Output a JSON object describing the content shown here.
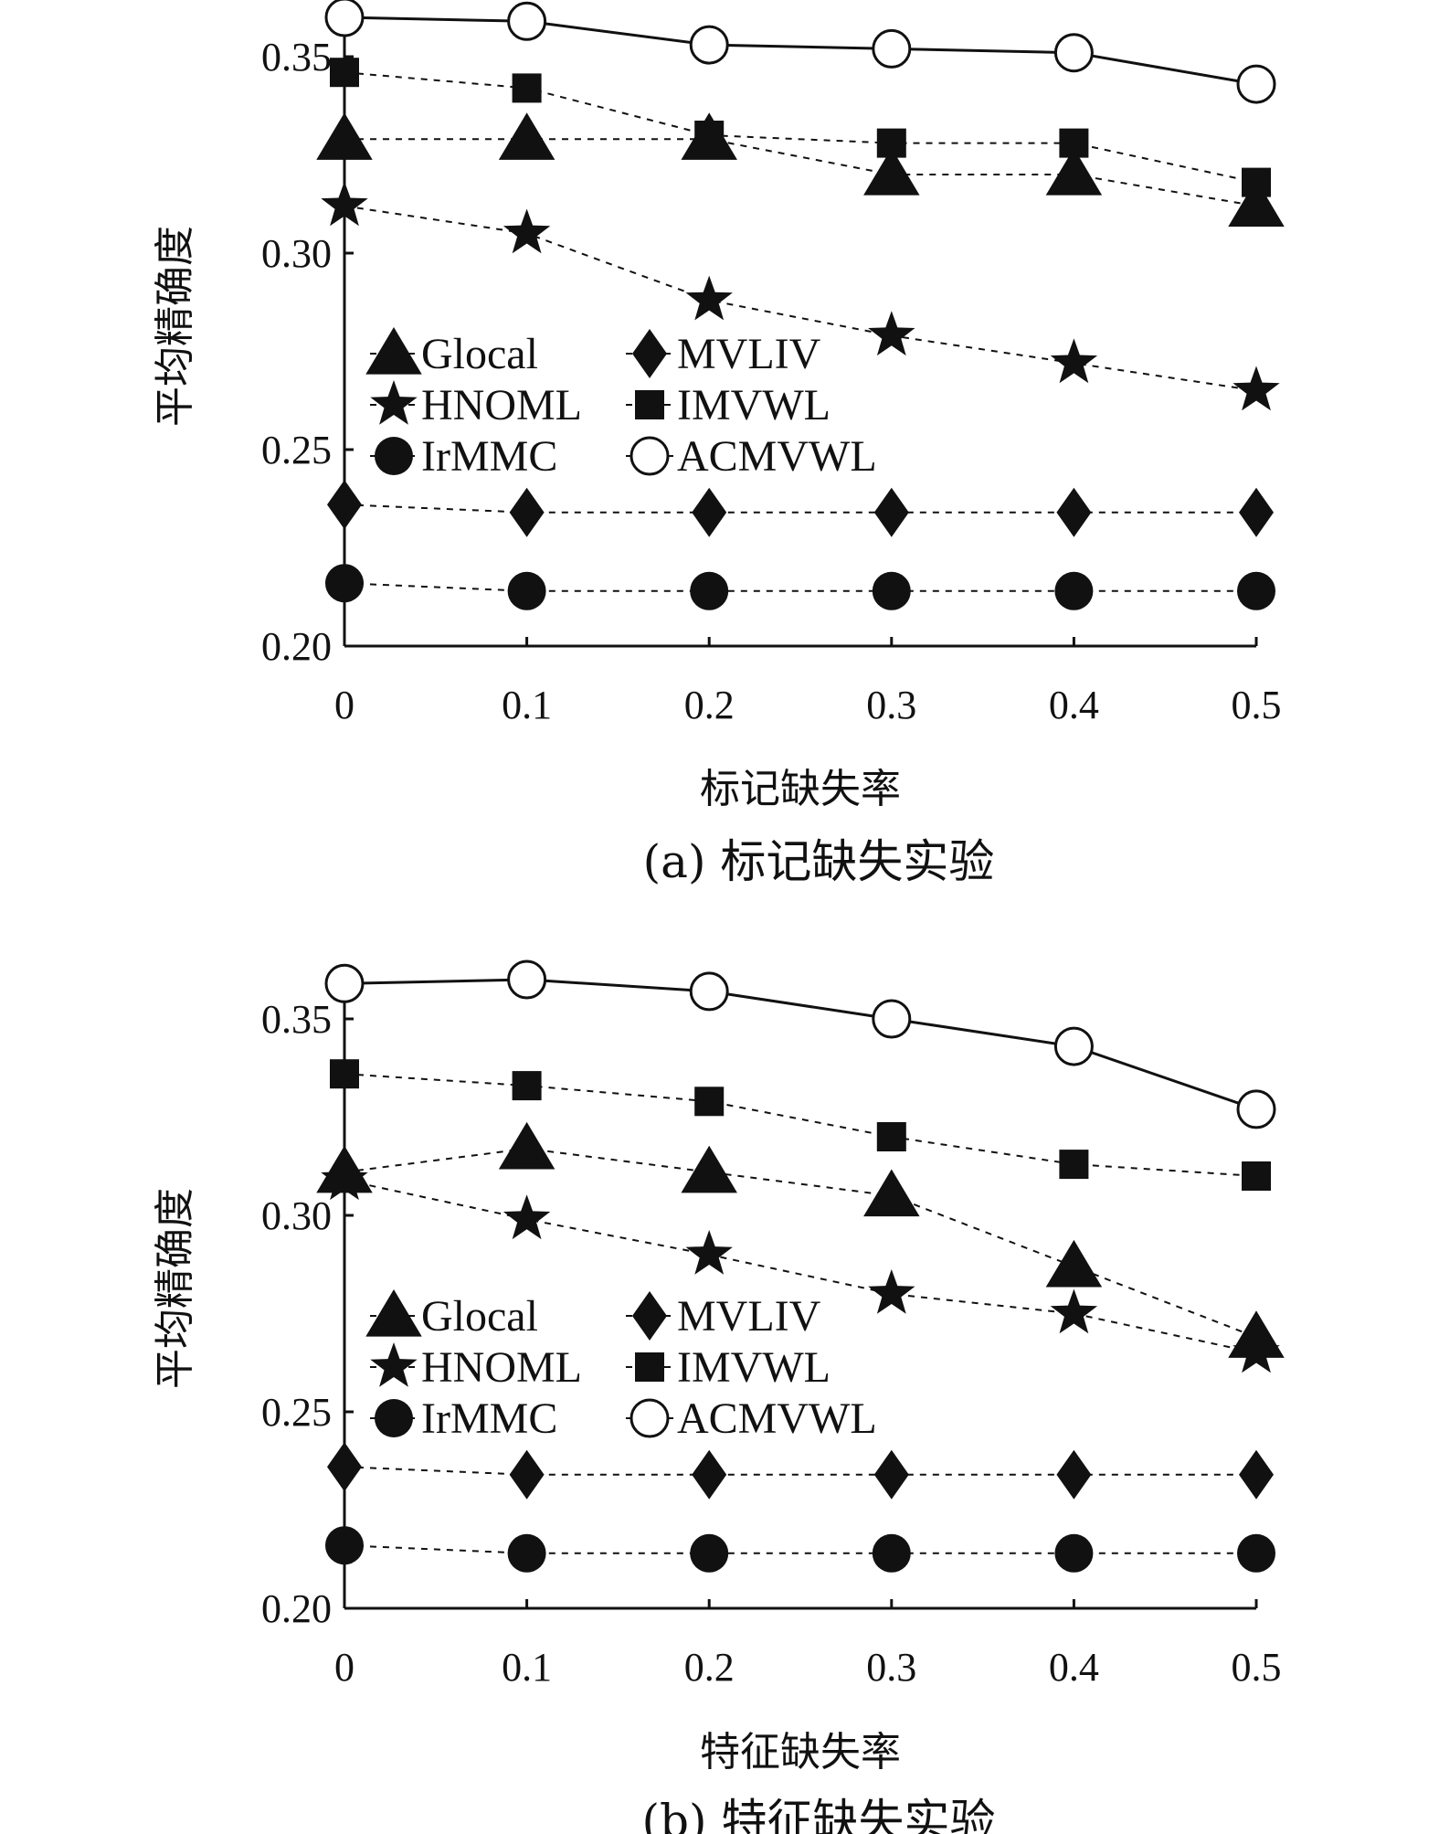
{
  "chart_data": [
    {
      "type": "line",
      "caption": "(a) 标记缺失实验",
      "xlabel": "标记缺失率",
      "ylabel": "平均精确度",
      "x": [
        0,
        0.1,
        0.2,
        0.3,
        0.4,
        0.5
      ],
      "x_tick_labels": [
        "0",
        "0.1",
        "0.2",
        "0.3",
        "0.4",
        "0.5"
      ],
      "ylim": [
        0.2,
        0.36
      ],
      "y_ticks": [
        0.2,
        0.25,
        0.3,
        0.35
      ],
      "y_tick_labels": [
        "0.20",
        "0.25",
        "0.30",
        "0.35"
      ],
      "series": [
        {
          "name": "Glocal",
          "marker": "triangle",
          "line": "dashed",
          "values": [
            0.329,
            0.329,
            0.329,
            0.32,
            0.32,
            0.312
          ]
        },
        {
          "name": "HNOML",
          "marker": "star",
          "line": "dashed",
          "values": [
            0.312,
            0.305,
            0.288,
            0.279,
            0.272,
            0.265
          ]
        },
        {
          "name": "IrMMC",
          "marker": "circle-filled",
          "line": "dashed",
          "values": [
            0.216,
            0.214,
            0.214,
            0.214,
            0.214,
            0.214
          ]
        },
        {
          "name": "MVLIV",
          "marker": "diamond",
          "line": "dashed",
          "values": [
            0.236,
            0.234,
            0.234,
            0.234,
            0.234,
            0.234
          ]
        },
        {
          "name": "IMVWL",
          "marker": "square",
          "line": "dashed",
          "values": [
            0.346,
            0.342,
            0.33,
            0.328,
            0.328,
            0.318
          ]
        },
        {
          "name": "ACMVWL",
          "marker": "circle-open",
          "line": "solid",
          "values": [
            0.36,
            0.359,
            0.353,
            0.352,
            0.351,
            0.343
          ]
        }
      ],
      "legend_position": "center-left"
    },
    {
      "type": "line",
      "caption": "(b) 特征缺失实验",
      "xlabel": "特征缺失率",
      "ylabel": "平均精确度",
      "x": [
        0,
        0.1,
        0.2,
        0.3,
        0.4,
        0.5
      ],
      "x_tick_labels": [
        "0",
        "0.1",
        "0.2",
        "0.3",
        "0.4",
        "0.5"
      ],
      "ylim": [
        0.2,
        0.36
      ],
      "y_ticks": [
        0.2,
        0.25,
        0.3,
        0.35
      ],
      "y_tick_labels": [
        "0.20",
        "0.25",
        "0.30",
        "0.35"
      ],
      "series": [
        {
          "name": "Glocal",
          "marker": "triangle",
          "line": "dashed",
          "values": [
            0.311,
            0.317,
            0.311,
            0.305,
            0.287,
            0.269
          ]
        },
        {
          "name": "HNOML",
          "marker": "star",
          "line": "dashed",
          "values": [
            0.309,
            0.299,
            0.29,
            0.28,
            0.275,
            0.265
          ]
        },
        {
          "name": "IrMMC",
          "marker": "circle-filled",
          "line": "dashed",
          "values": [
            0.216,
            0.214,
            0.214,
            0.214,
            0.214,
            0.214
          ]
        },
        {
          "name": "MVLIV",
          "marker": "diamond",
          "line": "dashed",
          "values": [
            0.236,
            0.234,
            0.234,
            0.234,
            0.234,
            0.234
          ]
        },
        {
          "name": "IMVWL",
          "marker": "square",
          "line": "dashed",
          "values": [
            0.336,
            0.333,
            0.329,
            0.32,
            0.313,
            0.31
          ]
        },
        {
          "name": "ACMVWL",
          "marker": "circle-open",
          "line": "solid",
          "values": [
            0.359,
            0.36,
            0.357,
            0.35,
            0.343,
            0.327
          ]
        }
      ],
      "legend_position": "center-left"
    }
  ]
}
